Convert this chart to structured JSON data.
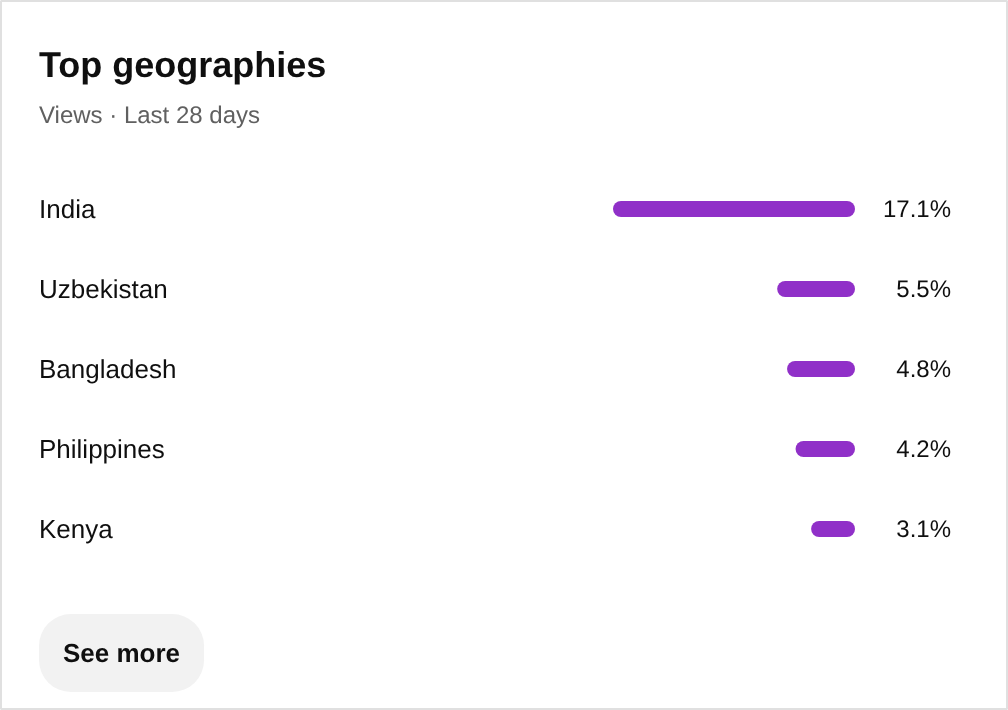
{
  "chart_data": {
    "type": "bar",
    "orientation": "horizontal",
    "title": "Top geographies",
    "subtitle": "Views · Last 28 days",
    "categories": [
      "India",
      "Uzbekistan",
      "Bangladesh",
      "Philippines",
      "Kenya"
    ],
    "values": [
      17.1,
      5.5,
      4.8,
      4.2,
      3.1
    ],
    "value_labels": [
      "17.1%",
      "5.5%",
      "4.8%",
      "4.2%",
      "3.1%"
    ],
    "color": "#9030c8",
    "xlim": [
      17.1,
      0
    ],
    "grid": false,
    "annotations": [
      "See more"
    ]
  }
}
